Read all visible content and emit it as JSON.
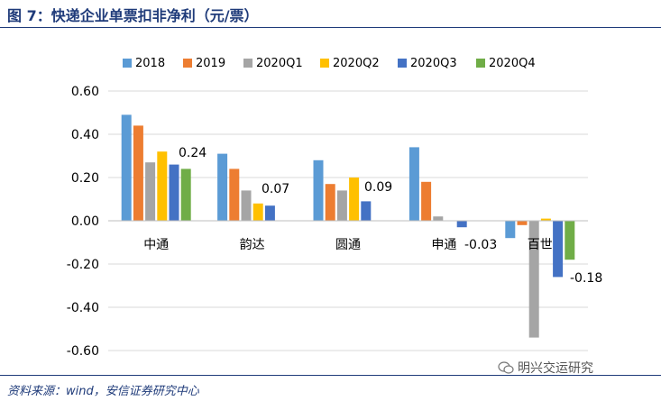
{
  "header": {
    "title": "图 7：快递企业单票扣非净利（元/票）"
  },
  "footer": {
    "source": "资料来源：wind，安信证券研究中心",
    "watermark": "明兴交运研究",
    "watermark_icon": "wechat-icon"
  },
  "colors": {
    "accent": "#1f3b7a"
  },
  "chart_data": {
    "type": "bar",
    "title": "",
    "xlabel": "",
    "ylabel": "",
    "ylim": [
      -0.6,
      0.6
    ],
    "yticks": [
      "0.60",
      "0.40",
      "0.20",
      "0.00",
      "-0.20",
      "-0.40",
      "-0.60"
    ],
    "grid": true,
    "legend": "top",
    "categories": [
      "中通",
      "韵达",
      "圆通",
      "申通",
      "百世"
    ],
    "series": [
      {
        "name": "2018",
        "color": "#5b9bd5",
        "values": [
          0.49,
          0.31,
          0.28,
          0.34,
          -0.08
        ]
      },
      {
        "name": "2019",
        "color": "#ed7d31",
        "values": [
          0.44,
          0.24,
          0.17,
          0.18,
          -0.02
        ]
      },
      {
        "name": "2020Q1",
        "color": "#a5a5a5",
        "values": [
          0.27,
          0.14,
          0.14,
          0.02,
          -0.54
        ]
      },
      {
        "name": "2020Q2",
        "color": "#ffc000",
        "values": [
          0.32,
          0.08,
          0.2,
          0.0,
          0.01
        ]
      },
      {
        "name": "2020Q3",
        "color": "#4472c4",
        "values": [
          0.26,
          0.07,
          0.09,
          -0.03,
          -0.26
        ]
      },
      {
        "name": "2020Q4",
        "color": "#70ad47",
        "values": [
          0.24,
          null,
          null,
          null,
          -0.18
        ]
      }
    ],
    "annotations": [
      "0.24",
      "0.07",
      "0.09",
      "-0.03",
      "-0.18"
    ]
  }
}
